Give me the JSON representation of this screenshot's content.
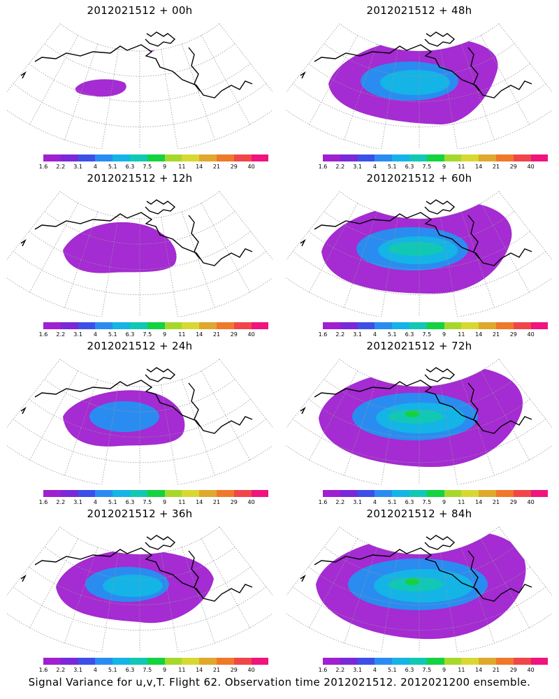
{
  "caption": "Signal Variance for u,v,T. Flight 62. Observation time 2012021512. 2012021200 ensemble.",
  "colorbar": {
    "labels": [
      "1.6",
      "2.2",
      "3.1",
      "4",
      "5.1",
      "6.3",
      "7.5",
      "9",
      "11",
      "14",
      "21",
      "29",
      "40"
    ],
    "colors": [
      "#a020d0",
      "#7a28d8",
      "#3c50e8",
      "#2a8cf0",
      "#14b4e6",
      "#10c8b4",
      "#14d240",
      "#a6d82c",
      "#d8d832",
      "#e0a82c",
      "#f0782a",
      "#f0464a",
      "#f0147c"
    ]
  },
  "panels": [
    {
      "title": "2012021512 + 00h",
      "level": 0
    },
    {
      "title": "2012021512 + 48h",
      "level": 4
    },
    {
      "title": "2012021512 + 12h",
      "level": 1
    },
    {
      "title": "2012021512 + 60h",
      "level": 5
    },
    {
      "title": "2012021512 + 24h",
      "level": 2
    },
    {
      "title": "2012021512 + 72h",
      "level": 6
    },
    {
      "title": "2012021512 + 36h",
      "level": 3
    },
    {
      "title": "2012021512 + 84h",
      "level": 7
    }
  ]
}
